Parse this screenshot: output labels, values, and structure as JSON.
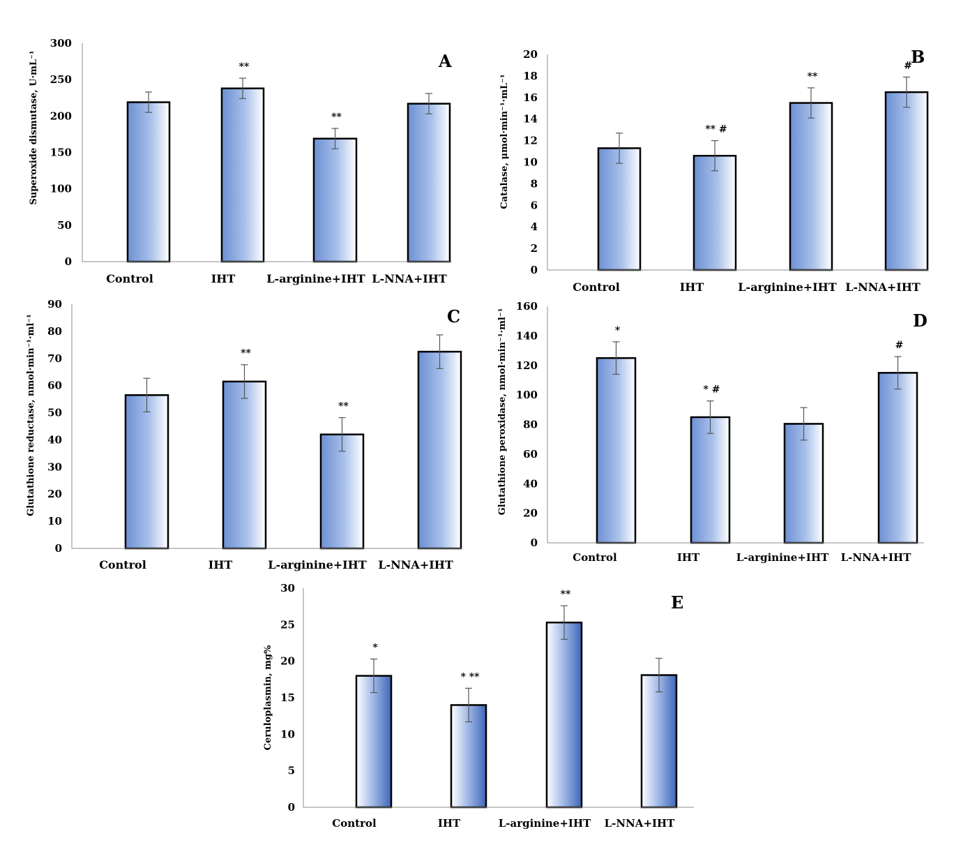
{
  "chart_data": [
    {
      "id": "A",
      "type": "bar",
      "panel_letter": "A",
      "ylabel": "Superoxide dismutase, U·mL⁻¹",
      "categories": [
        "Control",
        "IHT",
        "L-arginine+IHT",
        "L-NNA+IHT"
      ],
      "values": [
        219,
        238,
        169,
        217
      ],
      "errors": [
        14,
        14,
        14,
        14
      ],
      "significance": [
        "",
        "**",
        "**",
        ""
      ],
      "ylim": [
        0,
        300
      ],
      "yticks": [
        0,
        50,
        100,
        150,
        200,
        250,
        300
      ],
      "gradient": "horizontal",
      "grid": false
    },
    {
      "id": "B",
      "type": "bar",
      "panel_letter": "B",
      "ylabel": "Catalase, μmol·min⁻¹·mL⁻¹",
      "categories": [
        "Control",
        "IHT",
        "L-arginine+IHT",
        "L-NNA+IHT"
      ],
      "values": [
        11.3,
        10.6,
        15.5,
        16.5
      ],
      "errors": [
        1.4,
        1.4,
        1.4,
        1.4
      ],
      "significance": [
        "",
        "** #",
        "**",
        "#"
      ],
      "ylim": [
        0,
        20
      ],
      "yticks": [
        0,
        2,
        4,
        6,
        8,
        10,
        12,
        14,
        16,
        18,
        20
      ],
      "gradient": "horizontal",
      "grid": false
    },
    {
      "id": "C",
      "type": "bar",
      "panel_letter": "C",
      "ylabel": "Glutathione reductase, nmol·min⁻¹·ml⁻¹",
      "categories": [
        "Control",
        "IHT",
        "L-arginine+IHT",
        "L-NNA+IHT"
      ],
      "values": [
        56.5,
        61.5,
        42,
        72.5
      ],
      "errors": [
        6.2,
        6.2,
        6.2,
        6.2
      ],
      "significance": [
        "",
        "**",
        "**",
        ""
      ],
      "ylim": [
        0,
        90
      ],
      "yticks": [
        0,
        10,
        20,
        30,
        40,
        50,
        60,
        70,
        80,
        90
      ],
      "gradient": "horizontal",
      "grid": false
    },
    {
      "id": "D",
      "type": "bar",
      "panel_letter": "D",
      "ylabel": "Glutathione peroxidase, nmol·min⁻¹·ml⁻¹",
      "categories": [
        "Control",
        "IHT",
        "L-arginine+IHT",
        "L-NNA+IHT"
      ],
      "values": [
        125,
        85,
        80.5,
        115
      ],
      "errors": [
        11,
        11,
        11,
        11
      ],
      "significance": [
        "*",
        "* #",
        "",
        "#"
      ],
      "ylim": [
        0,
        160
      ],
      "yticks": [
        0,
        20,
        40,
        60,
        80,
        100,
        120,
        140,
        160
      ],
      "gradient": "horizontal",
      "grid": false
    },
    {
      "id": "E",
      "type": "bar",
      "panel_letter": "E",
      "ylabel": "Ceruloplasmin, mg%",
      "categories": [
        "Control",
        "IHT",
        "L-arginine+IHT",
        "L-NNA+IHT"
      ],
      "values": [
        18,
        14,
        25.3,
        18.1
      ],
      "errors": [
        2.3,
        2.3,
        2.3,
        2.3
      ],
      "significance": [
        "*",
        "* **",
        "**",
        ""
      ],
      "ylim": [
        0,
        30
      ],
      "yticks": [
        0,
        5,
        10,
        15,
        20,
        25,
        30
      ],
      "gradient": "horizontal-reverse",
      "grid": false
    }
  ],
  "colors": {
    "bar_light": "#ffffff",
    "bar_dark": "#5f84cd",
    "bar_stroke": "#000000",
    "axis": "#8c8c8c",
    "error_bar": "#555555"
  }
}
